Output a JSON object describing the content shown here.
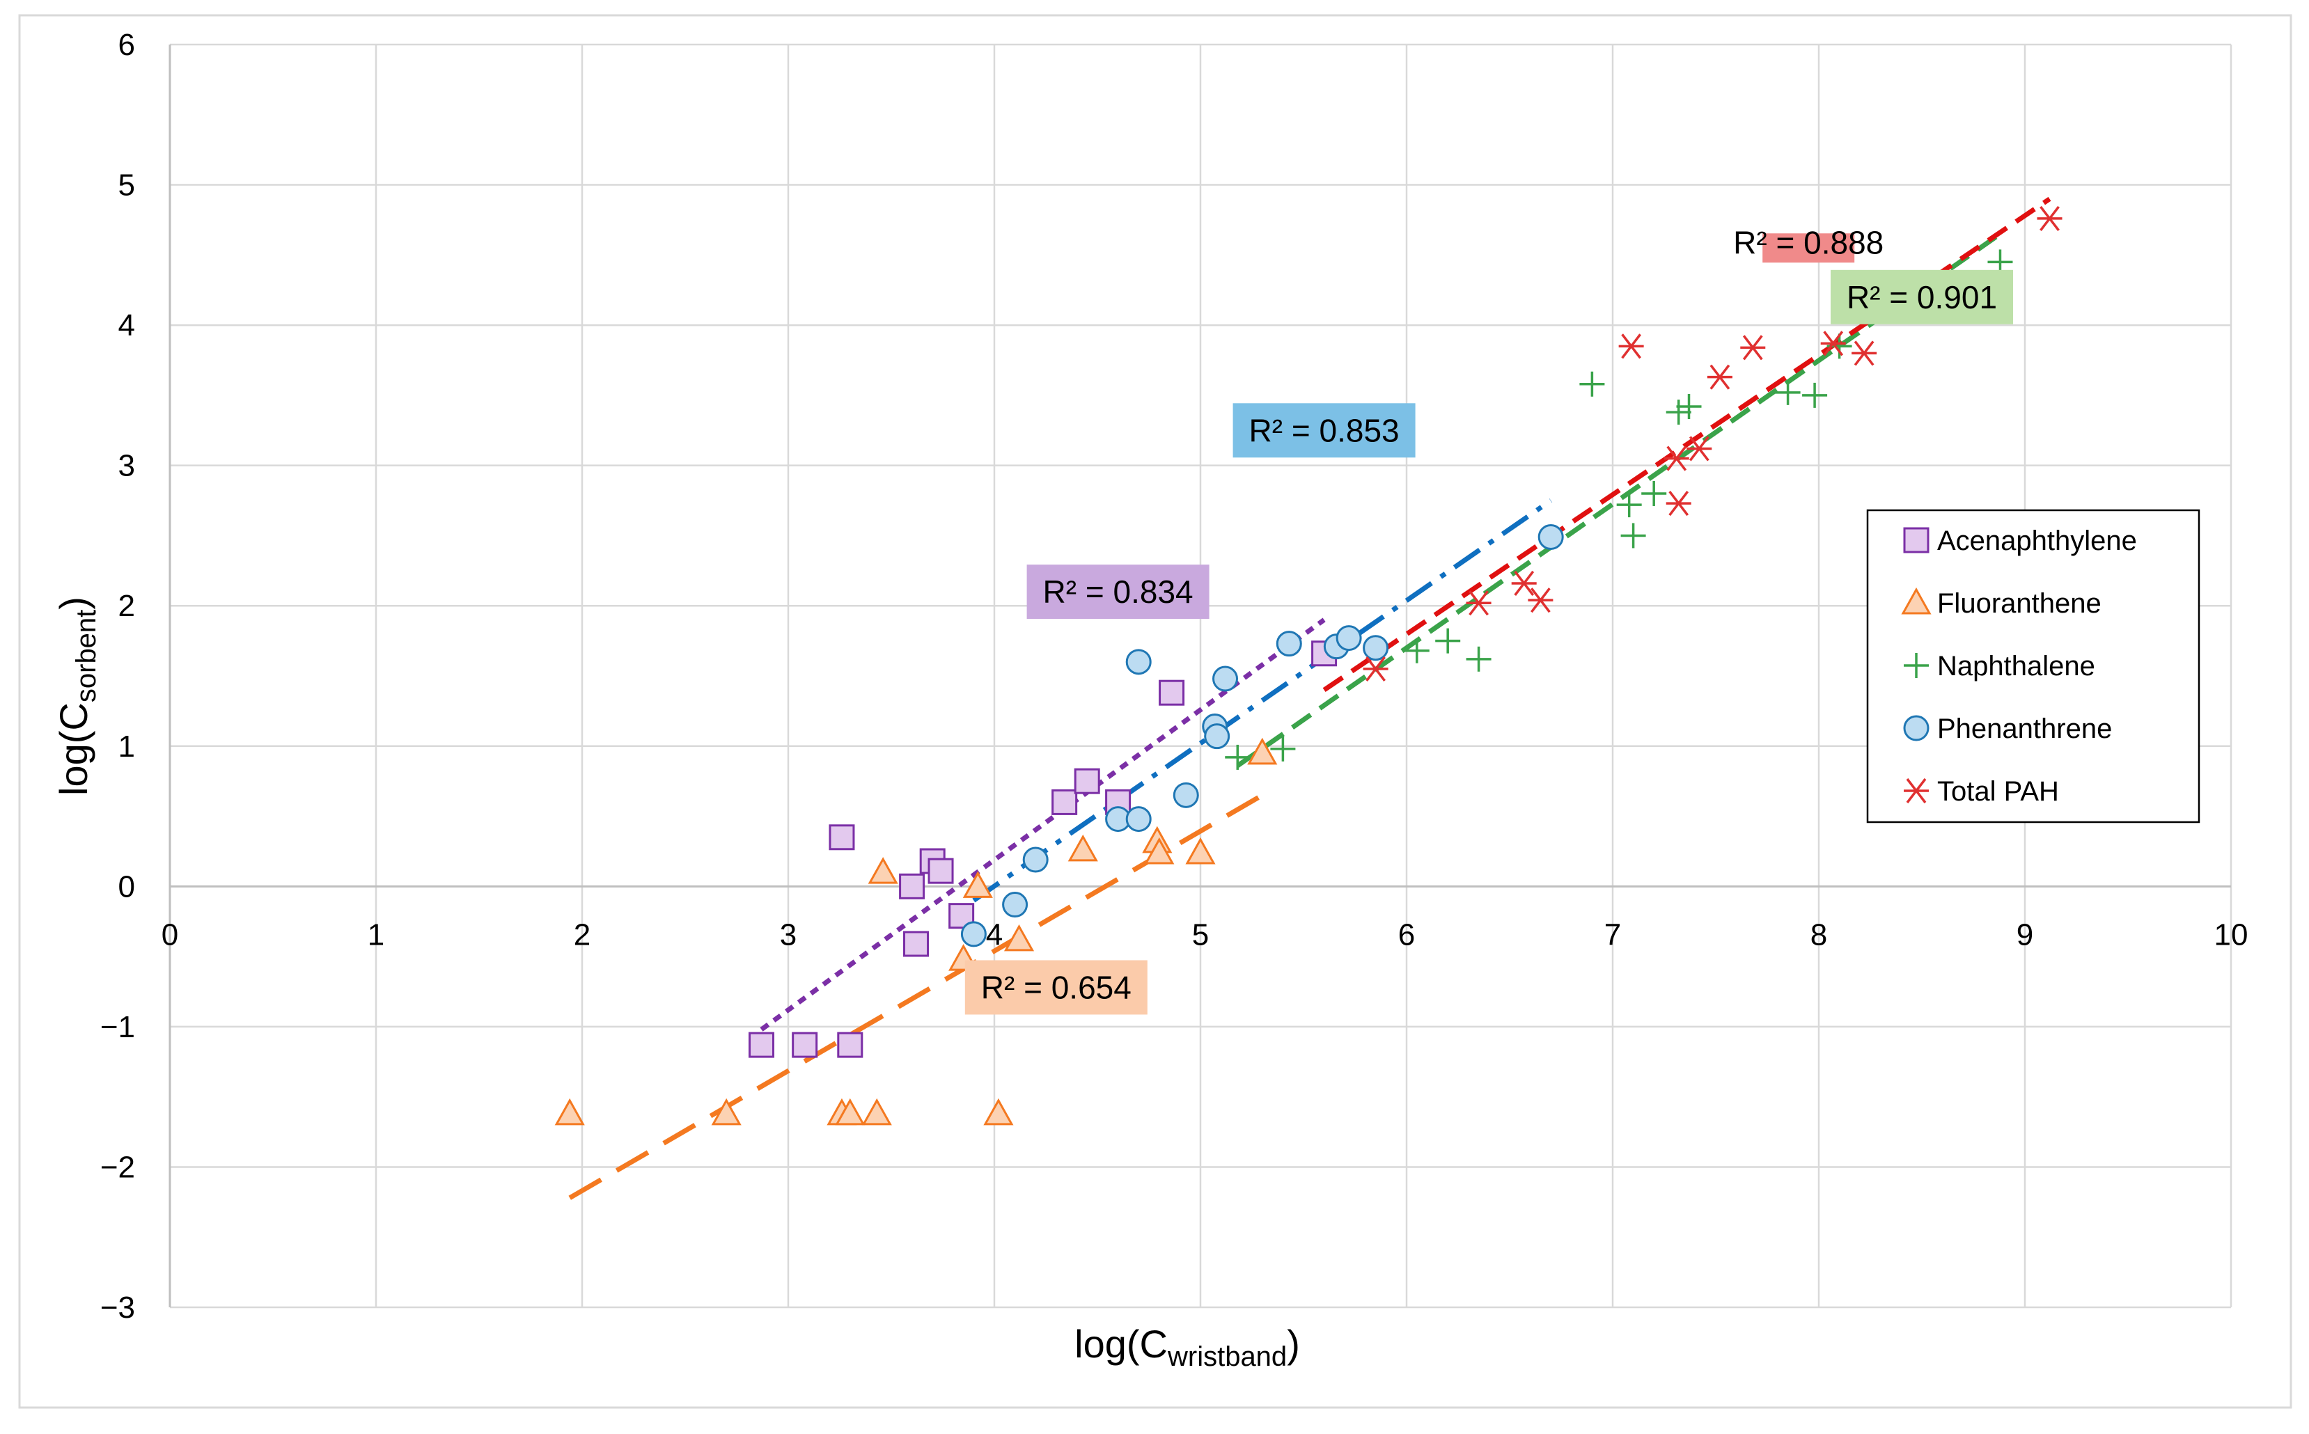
{
  "chart_data": {
    "type": "scatter",
    "xlabel": "log(C",
    "xlabel_sub": "wristband",
    "xlabel_end": ")",
    "ylabel": "log(C",
    "ylabel_sub": "sorbent",
    "ylabel_end": ")",
    "xlim": [
      0,
      10
    ],
    "ylim": [
      -3,
      6
    ],
    "x_ticks": [
      0,
      1,
      2,
      3,
      4,
      5,
      6,
      7,
      8,
      9,
      10
    ],
    "y_ticks": [
      -3,
      -2,
      -1,
      0,
      1,
      2,
      3,
      4,
      5,
      6
    ],
    "y_tick_labels": [
      "−3",
      "−2",
      "−1",
      "0",
      "1",
      "2",
      "3",
      "4",
      "5",
      "6"
    ],
    "grid": true,
    "legend_position": "right",
    "series": [
      {
        "name": "Acenaphthylene",
        "marker": "square",
        "color": "#7b2fa6",
        "fill": "#e3c9ee",
        "points": [
          [
            2.87,
            -1.13
          ],
          [
            3.08,
            -1.13
          ],
          [
            3.3,
            -1.13
          ],
          [
            3.26,
            0.35
          ],
          [
            3.6,
            0.0
          ],
          [
            3.62,
            -0.41
          ],
          [
            3.7,
            0.18
          ],
          [
            3.74,
            0.11
          ],
          [
            3.84,
            -0.21
          ],
          [
            4.34,
            0.6
          ],
          [
            4.45,
            0.75
          ],
          [
            4.6,
            0.6
          ],
          [
            4.86,
            1.38
          ],
          [
            5.6,
            1.66
          ]
        ]
      },
      {
        "name": "Fluoranthene",
        "marker": "triangle",
        "color": "#f47920",
        "fill": "#fcd2b3",
        "points": [
          [
            1.94,
            -1.62
          ],
          [
            2.7,
            -1.62
          ],
          [
            3.26,
            -1.62
          ],
          [
            3.3,
            -1.62
          ],
          [
            3.43,
            -1.62
          ],
          [
            4.02,
            -1.62
          ],
          [
            3.46,
            0.1
          ],
          [
            3.85,
            -0.52
          ],
          [
            3.92,
            0.0
          ],
          [
            4.12,
            -0.38
          ],
          [
            4.43,
            0.26
          ],
          [
            4.79,
            0.32
          ],
          [
            4.8,
            0.24
          ],
          [
            5.0,
            0.24
          ],
          [
            5.3,
            0.95
          ]
        ]
      },
      {
        "name": "Naphthalene",
        "marker": "plus",
        "color": "#3aa34a",
        "fill": "none",
        "points": [
          [
            5.18,
            0.92
          ],
          [
            5.4,
            0.98
          ],
          [
            6.05,
            1.68
          ],
          [
            6.2,
            1.75
          ],
          [
            6.35,
            1.62
          ],
          [
            6.9,
            3.58
          ],
          [
            7.08,
            2.72
          ],
          [
            7.1,
            2.5
          ],
          [
            7.2,
            2.8
          ],
          [
            7.32,
            3.38
          ],
          [
            7.37,
            3.42
          ],
          [
            7.85,
            3.52
          ],
          [
            7.98,
            3.5
          ],
          [
            8.1,
            3.85
          ],
          [
            8.88,
            4.45
          ]
        ]
      },
      {
        "name": "Phenanthrene",
        "marker": "circle",
        "color": "#1f77b4",
        "fill": "#bcdcf2",
        "points": [
          [
            3.9,
            -0.34
          ],
          [
            4.1,
            -0.13
          ],
          [
            4.2,
            0.19
          ],
          [
            4.6,
            0.48
          ],
          [
            4.7,
            0.48
          ],
          [
            4.7,
            1.6
          ],
          [
            4.93,
            0.65
          ],
          [
            5.07,
            1.14
          ],
          [
            5.08,
            1.07
          ],
          [
            5.12,
            1.48
          ],
          [
            5.43,
            1.73
          ],
          [
            5.66,
            1.71
          ],
          [
            5.72,
            1.77
          ],
          [
            5.85,
            1.7
          ],
          [
            6.7,
            2.49
          ]
        ]
      },
      {
        "name": "Total PAH",
        "marker": "asterisk",
        "color": "#e03030",
        "fill": "none",
        "points": [
          [
            5.85,
            1.55
          ],
          [
            6.35,
            2.02
          ],
          [
            6.57,
            2.16
          ],
          [
            6.65,
            2.04
          ],
          [
            7.09,
            3.85
          ],
          [
            7.31,
            3.05
          ],
          [
            7.32,
            2.73
          ],
          [
            7.42,
            3.12
          ],
          [
            7.52,
            3.63
          ],
          [
            7.68,
            3.84
          ],
          [
            8.07,
            3.87
          ],
          [
            8.22,
            3.8
          ],
          [
            9.12,
            4.76
          ]
        ]
      }
    ],
    "trendlines": [
      {
        "name": "Acenaphthylene fit",
        "color": "#7b2fa6",
        "dash": "short-dot",
        "from": [
          2.87,
          -1.02
        ],
        "to": [
          5.6,
          1.9
        ],
        "r2": "R² = 0.834",
        "label_bg": "#c9a9de",
        "label_at": [
          4.6,
          2.1
        ],
        "label_size": "large"
      },
      {
        "name": "Fluoranthene fit",
        "color": "#f47920",
        "dash": "long-dash",
        "from": [
          1.94,
          -2.22
        ],
        "to": [
          5.3,
          0.65
        ],
        "r2": "R² = 0.654",
        "label_bg": "#fbcbaa",
        "label_at": [
          4.3,
          -0.72
        ],
        "label_size": "large"
      },
      {
        "name": "Naphthalene fit",
        "color": "#3aa34a",
        "dash": "dash",
        "from": [
          5.18,
          0.86
        ],
        "to": [
          8.88,
          4.65
        ],
        "r2": "R² = 0.901",
        "label_bg": "#bde0a8",
        "label_at": [
          8.5,
          4.2
        ],
        "label_size": "large"
      },
      {
        "name": "Phenanthrene fit",
        "color": "#0f6fc0",
        "dash": "dash-dot",
        "from": [
          3.9,
          -0.1
        ],
        "to": [
          6.7,
          2.75
        ],
        "r2": "R² = 0.853",
        "label_bg": "#7cc0e6",
        "label_at": [
          5.6,
          3.25
        ],
        "label_size": "large"
      },
      {
        "name": "Total PAH fit",
        "color": "#e01010",
        "dash": "dash",
        "from": [
          5.6,
          1.4
        ],
        "to": [
          9.12,
          4.9
        ],
        "r2": "R² = 0.888",
        "label_bg": "#f08a8a",
        "label_at": [
          7.95,
          4.55
        ],
        "label_size": "small"
      }
    ]
  }
}
